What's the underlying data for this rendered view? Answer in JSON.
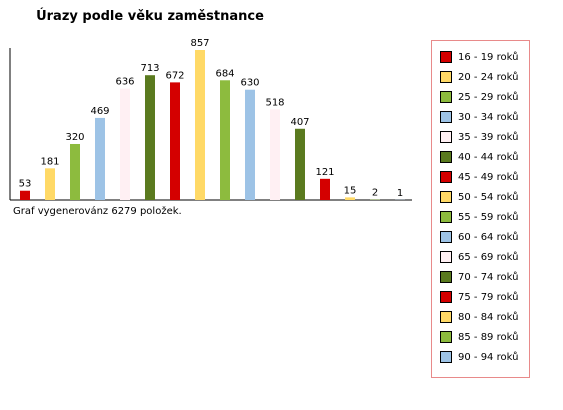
{
  "chart_data": {
    "type": "bar",
    "title": "Úrazy podle věku zaměstnance",
    "categories": [
      "16 - 19 roků",
      "20 - 24 roků",
      "25 - 29 roků",
      "30 - 34 roků",
      "35 - 39 roků",
      "40 - 44 roků",
      "45 - 49 roků",
      "50 - 54 roků",
      "55 - 59 roků",
      "60 - 64 roků",
      "65 - 69 roků",
      "70 - 74 roků",
      "75 - 79 roků",
      "80 - 84 roků",
      "85 - 89 roků",
      "90 - 94 roků"
    ],
    "values": [
      53,
      181,
      320,
      469,
      636,
      713,
      672,
      857,
      684,
      630,
      518,
      407,
      121,
      15,
      2,
      1
    ],
    "colors": [
      "#d40000",
      "#ffd966",
      "#8dbb3e",
      "#9dc3e6",
      "#fff0f3",
      "#5a7a1f",
      "#d40000",
      "#ffd966",
      "#8dbb3e",
      "#9dc3e6",
      "#fff0f3",
      "#5a7a1f",
      "#d40000",
      "#ffd966",
      "#8dbb3e",
      "#9dc3e6"
    ],
    "ylim": [
      0,
      857
    ],
    "legend_position": "right",
    "grid": false
  },
  "note": "Graf vygenerovánz 6279 položek."
}
